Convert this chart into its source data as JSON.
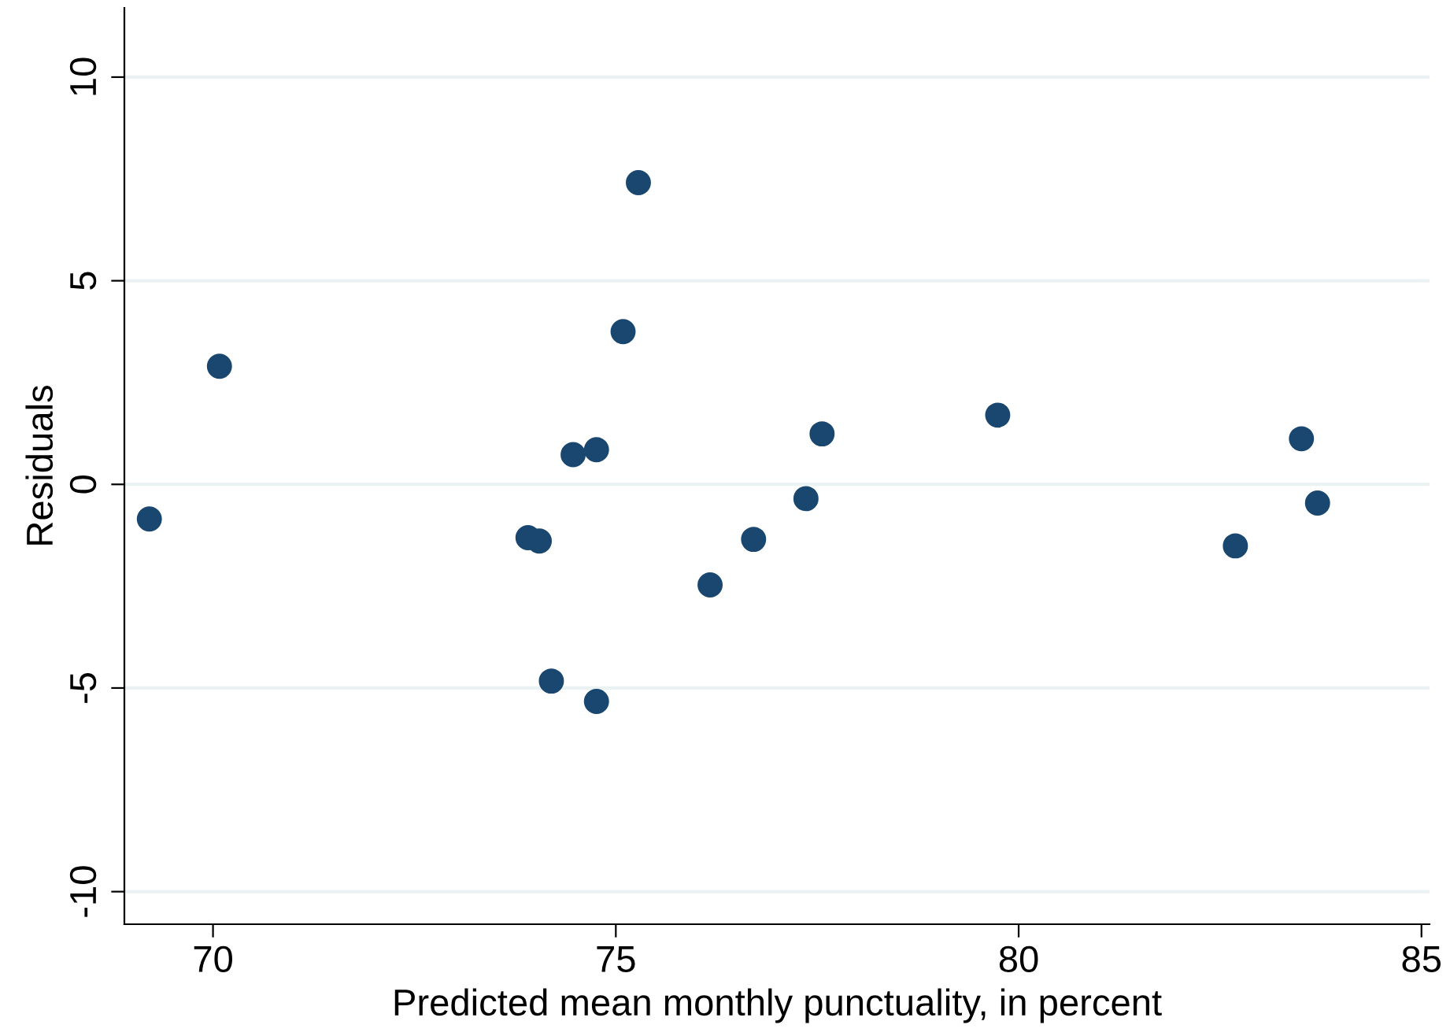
{
  "chart_data": {
    "type": "scatter",
    "xlabel": "Predicted mean monthly punctuality, in percent",
    "ylabel": "Residuals",
    "x": [
      69.21,
      70.08,
      73.91,
      74.05,
      74.2,
      74.47,
      74.76,
      74.76,
      75.09,
      75.28,
      76.17,
      76.71,
      77.36,
      77.56,
      79.74,
      82.69,
      83.51,
      83.71
    ],
    "series": [
      {
        "color": "#1a476f",
        "values": [
          -0.85,
          2.9,
          -1.31,
          -1.39,
          -4.83,
          0.73,
          0.85,
          -5.33,
          3.75,
          7.41,
          -2.47,
          -1.35,
          -0.35,
          1.24,
          1.7,
          -1.51,
          1.12,
          -0.46
        ]
      }
    ],
    "xlim": [
      68.9,
      85.1
    ],
    "xticks": [
      70,
      75,
      80,
      85
    ],
    "ylim": [
      -10.8,
      11.7
    ],
    "yticks": [
      -10,
      -5,
      0,
      5,
      10
    ],
    "grid": "y",
    "marker": "circle",
    "legend": false
  }
}
